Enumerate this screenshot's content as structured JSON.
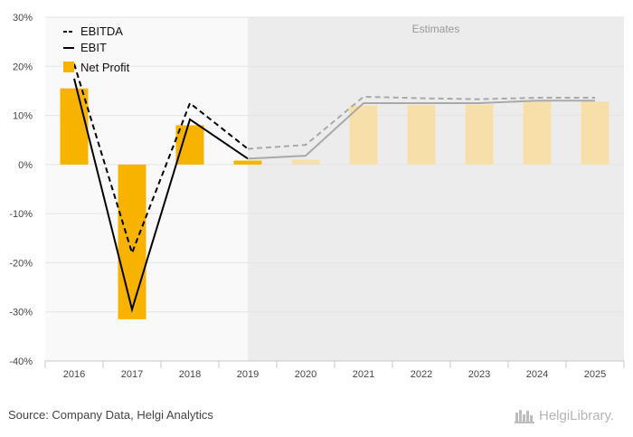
{
  "chart_data": {
    "type": "bar",
    "categories": [
      "2016",
      "2017",
      "2018",
      "2019",
      "2020",
      "2021",
      "2022",
      "2023",
      "2024",
      "2025"
    ],
    "estimate_start_index": 4,
    "estimates_label": "Estimates",
    "ylim": [
      -40,
      30
    ],
    "yticks": [
      30,
      20,
      10,
      0,
      -10,
      -20,
      -30,
      -40
    ],
    "ytick_labels": [
      "30%",
      "20%",
      "10%",
      "0%",
      "-10%",
      "-20%",
      "-30%",
      "-40%"
    ],
    "series": [
      {
        "name": "EBITDA",
        "kind": "line",
        "style": "dashed",
        "values": [
          20.5,
          -18.0,
          12.5,
          3.2,
          4.0,
          13.8,
          13.5,
          13.3,
          13.6,
          13.6
        ]
      },
      {
        "name": "EBIT",
        "kind": "line",
        "style": "solid",
        "values": [
          17.5,
          -29.5,
          9.2,
          1.2,
          1.8,
          12.5,
          12.5,
          12.5,
          13.0,
          13.0
        ]
      },
      {
        "name": "Net Profit",
        "kind": "bar",
        "values": [
          15.5,
          -31.5,
          8.0,
          0.8,
          1.0,
          12.0,
          12.1,
          12.2,
          12.8,
          12.8
        ]
      }
    ],
    "legend_position": "top-left",
    "colors": {
      "bar_actual": "#f8b200",
      "bar_estimate": "#f6dfa8",
      "line_actual": "#000000",
      "line_estimate": "#a9a9a9",
      "estimate_bg": "#ececec",
      "plot_bg": "#f9f9f9"
    }
  },
  "footer": {
    "source": "Source: Company Data, Helgi Analytics",
    "logo_text": "HelgiLibrary."
  }
}
